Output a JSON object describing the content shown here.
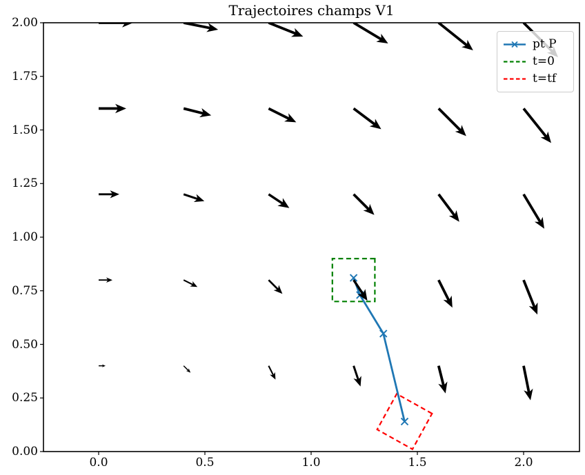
{
  "figure": {
    "background": "#ffffff",
    "text_color": "#000000"
  },
  "chart_data": {
    "type": "quiver",
    "title": "Trajectoires champs V1",
    "xlabel": "",
    "ylabel": "",
    "grid": false,
    "xlim": [
      -0.26,
      2.26
    ],
    "ylim": [
      0,
      2
    ],
    "x_ticks": {
      "values": [
        0,
        0.5,
        1,
        1.5,
        2
      ],
      "labels": [
        "0.0",
        "0.5",
        "1.0",
        "1.5",
        "2.0"
      ]
    },
    "y_ticks": {
      "values": [
        0,
        0.25,
        0.5,
        0.75,
        1,
        1.25,
        1.5,
        1.75,
        2
      ],
      "labels": [
        "0.00",
        "0.25",
        "0.50",
        "0.75",
        "1.00",
        "1.25",
        "1.50",
        "1.75",
        "2.00"
      ]
    },
    "vector_field": {
      "name": "V1",
      "formula": "V1(x,y) = (y, -x)",
      "color": "#000000",
      "grid_x": [
        0,
        0.4,
        0.8,
        1.2,
        1.6,
        2.0
      ],
      "grid_y": [
        0.4,
        0.8,
        1.2,
        1.6,
        2.0
      ],
      "arrow_format": [
        "x",
        "y",
        "u",
        "v"
      ],
      "arrows": [
        [
          0,
          0.4,
          0.4,
          0
        ],
        [
          0.4,
          0.4,
          0.4,
          -0.4
        ],
        [
          0.8,
          0.4,
          0.4,
          -0.8
        ],
        [
          1.2,
          0.4,
          0.4,
          -1.2
        ],
        [
          1.6,
          0.4,
          0.4,
          -1.6
        ],
        [
          2,
          0.4,
          0.4,
          -2
        ],
        [
          0,
          0.8,
          0.8,
          0
        ],
        [
          0.4,
          0.8,
          0.8,
          -0.4
        ],
        [
          0.8,
          0.8,
          0.8,
          -0.8
        ],
        [
          1.2,
          0.8,
          0.8,
          -1.2
        ],
        [
          1.6,
          0.8,
          0.8,
          -1.6
        ],
        [
          2,
          0.8,
          0.8,
          -2
        ],
        [
          0,
          1.2,
          1.2,
          0
        ],
        [
          0.4,
          1.2,
          1.2,
          -0.4
        ],
        [
          0.8,
          1.2,
          1.2,
          -0.8
        ],
        [
          1.2,
          1.2,
          1.2,
          -1.2
        ],
        [
          1.6,
          1.2,
          1.2,
          -1.6
        ],
        [
          2,
          1.2,
          1.2,
          -2
        ],
        [
          0,
          1.6,
          1.6,
          0
        ],
        [
          0.4,
          1.6,
          1.6,
          -0.4
        ],
        [
          0.8,
          1.6,
          1.6,
          -0.8
        ],
        [
          1.2,
          1.6,
          1.6,
          -1.2
        ],
        [
          1.6,
          1.6,
          1.6,
          -1.6
        ],
        [
          2,
          1.6,
          1.6,
          -2
        ],
        [
          0,
          2,
          2,
          0
        ],
        [
          0.4,
          2,
          2,
          -0.4
        ],
        [
          0.8,
          2,
          2,
          -0.8
        ],
        [
          1.2,
          2,
          2,
          -1.2
        ],
        [
          1.6,
          2,
          2,
          -1.6
        ],
        [
          2,
          2,
          2,
          -2
        ]
      ]
    },
    "trajectory": {
      "label": "pt P",
      "color": "#1f77b4",
      "marker": "x",
      "points": [
        [
          1.2,
          0.81
        ],
        [
          1.23,
          0.73
        ],
        [
          1.34,
          0.55
        ],
        [
          1.44,
          0.14
        ]
      ]
    },
    "squares": [
      {
        "label": "t=0",
        "color": "#008000",
        "linestyle": "dashed",
        "center": [
          1.2,
          0.8
        ],
        "side": 0.2,
        "rotation_deg": 0
      },
      {
        "label": "t=tf",
        "color": "#ff0000",
        "linestyle": "dashed",
        "center": [
          1.44,
          0.14
        ],
        "side": 0.19,
        "rotation_deg": -29
      }
    ],
    "legend": {
      "position": "upper right",
      "items": [
        {
          "label": "pt P",
          "color": "#1f77b4",
          "style": "solid-x-marker"
        },
        {
          "label": "t=0",
          "color": "#008000",
          "style": "dashed"
        },
        {
          "label": "t=tf",
          "color": "#ff0000",
          "style": "dashed"
        }
      ]
    }
  }
}
